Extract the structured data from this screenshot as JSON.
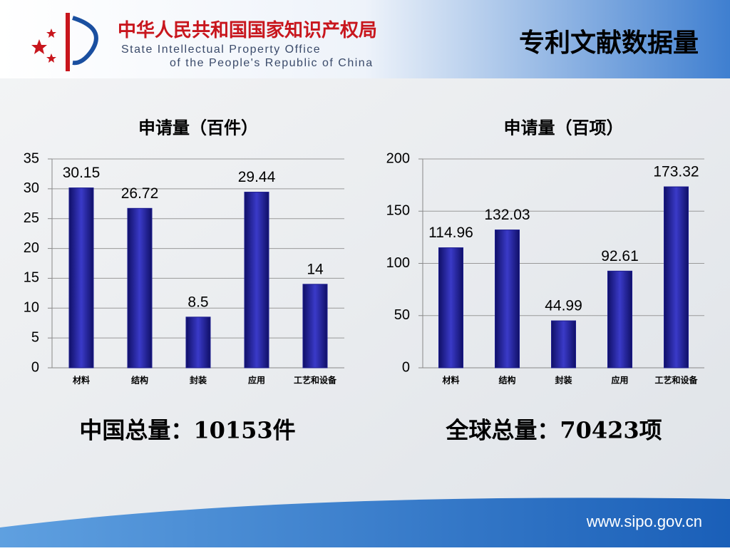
{
  "header": {
    "org_cn": "中华人民共和国国家知识产权局",
    "org_en_1": "State Intellectual Property Office",
    "org_en_2": "of the People's Republic of China",
    "title": "专利文献数据量"
  },
  "chart_data": [
    {
      "type": "bar",
      "title": "申请量（百件）",
      "categories": [
        "材料",
        "结构",
        "封装",
        "应用",
        "工艺和设备"
      ],
      "values": [
        30.15,
        26.72,
        8.5,
        29.44,
        14
      ],
      "color": "#1c1c8e",
      "ylim": [
        0,
        35
      ],
      "yticks": [
        0,
        5,
        10,
        15,
        20,
        25,
        30,
        35
      ],
      "grid": true
    },
    {
      "type": "bar",
      "title": "申请量（百项）",
      "categories": [
        "材料",
        "结构",
        "封装",
        "应用",
        "工艺和设备"
      ],
      "values": [
        114.96,
        132.03,
        44.99,
        92.61,
        173.32
      ],
      "color": "#1c1c8e",
      "ylim": [
        0,
        200
      ],
      "yticks": [
        0,
        50,
        100,
        150,
        200
      ],
      "grid": true
    }
  ],
  "totals": [
    "中国总量：10153件",
    "全球总量：70423项"
  ],
  "footer": "www.sipo.gov.cn"
}
